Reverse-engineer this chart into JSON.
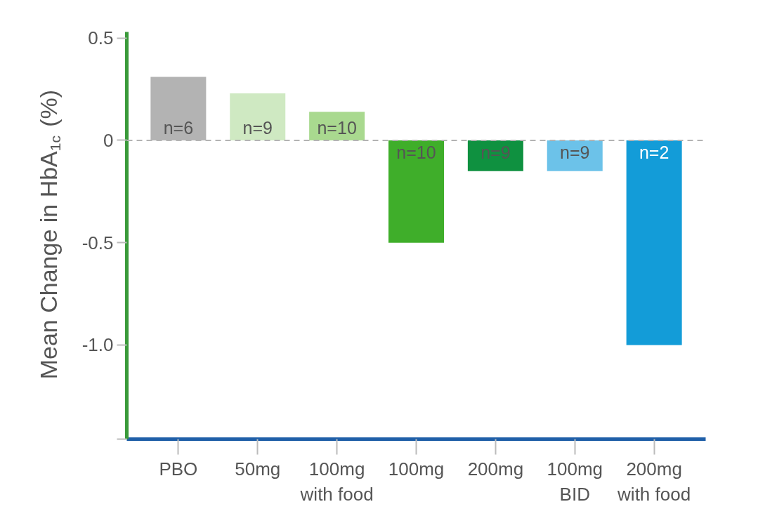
{
  "chart_data": {
    "type": "bar",
    "ylabel": "Mean Change in HbA$_{1c}$ (%)",
    "categories": [
      "PBO",
      "50mg",
      "100mg\nwith food",
      "100mg",
      "200mg",
      "100mg\nBID",
      "200mg\nwith food"
    ],
    "values": [
      0.31,
      0.23,
      0.14,
      -0.5,
      -0.15,
      -0.15,
      -1.0
    ],
    "colors": [
      "#b3b3b3",
      "#cfe9c2",
      "#a9d98f",
      "#3fae2a",
      "#0f9140",
      "#6cc2e9",
      "#139cd8"
    ],
    "ylim": [
      -1.46,
      0.53
    ],
    "yticks": [
      0.5,
      0,
      -0.5,
      {
        "value": -1.0,
        "label": "-1.0"
      },
      {
        "value": -1.46,
        "label": null
      }
    ],
    "ref_lines": [
      {
        "axis": "y",
        "value": 0,
        "color": "#b3b3b3",
        "line_style": "dashed"
      }
    ],
    "annotations": [
      "n=6",
      "n=9",
      "n=10",
      "n=10",
      "n=9",
      "n=9",
      "n=2"
    ],
    "grid": false
  }
}
